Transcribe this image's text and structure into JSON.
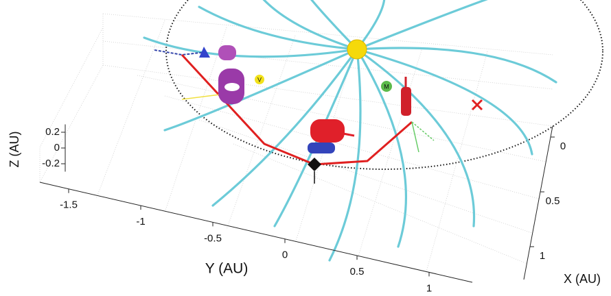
{
  "chart_data": {
    "type": "scatter3d",
    "xlabel": "X (AU)",
    "ylabel": "Y (AU)",
    "zlabel": "Z (AU)",
    "xlim": [
      -0.1,
      1.3
    ],
    "xticks": [
      0,
      0.5,
      1
    ],
    "ylim": [
      -1.7,
      1.3
    ],
    "yticks": [
      -1.5,
      -1,
      -0.5,
      0,
      0.5,
      1
    ],
    "zlim": [
      -0.3,
      0.3
    ],
    "zticks": [
      -0.2,
      0,
      0.2
    ],
    "annotations": [
      "V",
      "M"
    ]
  }
}
